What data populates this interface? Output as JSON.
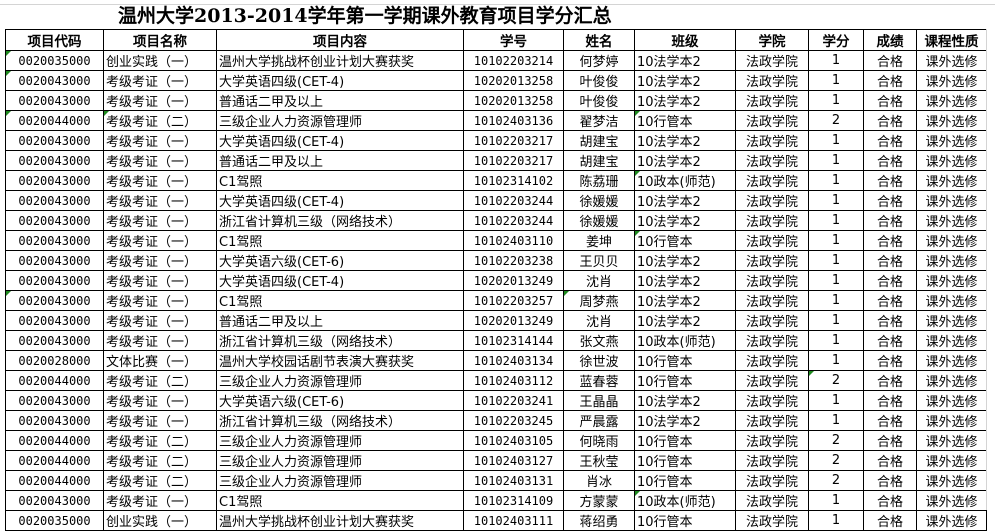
{
  "title": "温州大学2013-2014学年第一学期课外教育项目学分汇总",
  "headers": [
    "项目代码",
    "项目名称",
    "项目内容",
    "学号",
    "姓名",
    "班级",
    "学院",
    "学分",
    "成绩",
    "课程性质"
  ],
  "rows": [
    [
      "0020035000",
      "创业实践（一）",
      "温州大学挑战杯创业计划大赛获奖",
      "10102203214",
      "何梦婷",
      "10法学本2",
      "法政学院",
      "1",
      "合格",
      "课外选修"
    ],
    [
      "0020043000",
      "考级考证（一）",
      "大学英语四级(CET-4)",
      "10202013258",
      "叶俊俊",
      "10法学本2",
      "法政学院",
      "1",
      "合格",
      "课外选修"
    ],
    [
      "0020043000",
      "考级考证（一）",
      "普通话二甲及以上",
      "10202013258",
      "叶俊俊",
      "10法学本2",
      "法政学院",
      "1",
      "合格",
      "课外选修"
    ],
    [
      "0020044000",
      "考级考证（二）",
      "三级企业人力资源管理师",
      "10102403136",
      "翟梦洁",
      "10行管本",
      "法政学院",
      "2",
      "合格",
      "课外选修"
    ],
    [
      "0020043000",
      "考级考证（一）",
      "大学英语四级(CET-4)",
      "10102203217",
      "胡建宝",
      "10法学本2",
      "法政学院",
      "1",
      "合格",
      "课外选修"
    ],
    [
      "0020043000",
      "考级考证（一）",
      "普通话二甲及以上",
      "10102203217",
      "胡建宝",
      "10法学本2",
      "法政学院",
      "1",
      "合格",
      "课外选修"
    ],
    [
      "0020043000",
      "考级考证（一）",
      "C1驾照",
      "10102314102",
      "陈荔珊",
      "10政本(师范)",
      "法政学院",
      "1",
      "合格",
      "课外选修"
    ],
    [
      "0020043000",
      "考级考证（一）",
      "大学英语四级(CET-4)",
      "10102203244",
      "徐媛媛",
      "10法学本2",
      "法政学院",
      "1",
      "合格",
      "课外选修"
    ],
    [
      "0020043000",
      "考级考证（一）",
      "浙江省计算机三级（网络技术）",
      "10102203244",
      "徐媛媛",
      "10法学本2",
      "法政学院",
      "1",
      "合格",
      "课外选修"
    ],
    [
      "0020043000",
      "考级考证（一）",
      "C1驾照",
      "10102403110",
      "姜坤",
      "10行管本",
      "法政学院",
      "1",
      "合格",
      "课外选修"
    ],
    [
      "0020043000",
      "考级考证（一）",
      "大学英语六级(CET-6)",
      "10102203238",
      "王贝贝",
      "10法学本2",
      "法政学院",
      "1",
      "合格",
      "课外选修"
    ],
    [
      "0020043000",
      "考级考证（一）",
      "大学英语四级(CET-4)",
      "10202013249",
      "沈肖",
      "10法学本2",
      "法政学院",
      "1",
      "合格",
      "课外选修"
    ],
    [
      "0020043000",
      "考级考证（一）",
      "C1驾照",
      "10102203257",
      "周梦燕",
      "10法学本2",
      "法政学院",
      "1",
      "合格",
      "课外选修"
    ],
    [
      "0020043000",
      "考级考证（一）",
      "普通话二甲及以上",
      "10202013249",
      "沈肖",
      "10法学本2",
      "法政学院",
      "1",
      "合格",
      "课外选修"
    ],
    [
      "0020043000",
      "考级考证（一）",
      "浙江省计算机三级（网络技术）",
      "10102314144",
      "张文燕",
      "10政本(师范)",
      "法政学院",
      "1",
      "合格",
      "课外选修"
    ],
    [
      "0020028000",
      "文体比赛（一）",
      "温州大学校园话剧节表演大赛获奖",
      "10102403134",
      "徐世波",
      "10行管本",
      "法政学院",
      "1",
      "合格",
      "课外选修"
    ],
    [
      "0020044000",
      "考级考证（二）",
      "三级企业人力资源管理师",
      "10102403112",
      "蓝春蓉",
      "10行管本",
      "法政学院",
      "2",
      "合格",
      "课外选修"
    ],
    [
      "0020043000",
      "考级考证（一）",
      "大学英语六级(CET-6)",
      "10102203241",
      "王晶晶",
      "10法学本2",
      "法政学院",
      "1",
      "合格",
      "课外选修"
    ],
    [
      "0020043000",
      "考级考证（一）",
      "浙江省计算机三级（网络技术）",
      "10102203245",
      "严晨露",
      "10法学本2",
      "法政学院",
      "1",
      "合格",
      "课外选修"
    ],
    [
      "0020044000",
      "考级考证（二）",
      "三级企业人力资源管理师",
      "10102403105",
      "何晓雨",
      "10行管本",
      "法政学院",
      "2",
      "合格",
      "课外选修"
    ],
    [
      "0020044000",
      "考级考证（二）",
      "三级企业人力资源管理师",
      "10102403127",
      "王秋莹",
      "10行管本",
      "法政学院",
      "2",
      "合格",
      "课外选修"
    ],
    [
      "0020044000",
      "考级考证（二）",
      "三级企业人力资源管理师",
      "10102403131",
      "肖冰",
      "10行管本",
      "法政学院",
      "2",
      "合格",
      "课外选修"
    ],
    [
      "0020043000",
      "考级考证（一）",
      "C1驾照",
      "10102314109",
      "方蒙蒙",
      "10政本(师范)",
      "法政学院",
      "1",
      "合格",
      "课外选修"
    ],
    [
      "0020035000",
      "创业实践（一）",
      "温州大学挑战杯创业计划大赛获奖",
      "10102403111",
      "蒋绍勇",
      "10行管本",
      "法政学院",
      "1",
      "合格",
      "课外选修"
    ]
  ]
}
